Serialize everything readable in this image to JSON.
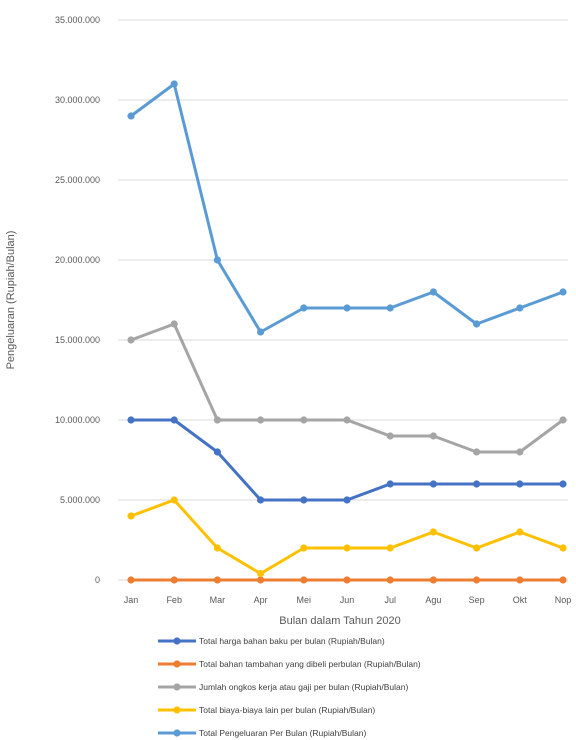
{
  "chart_data": {
    "type": "line",
    "title": "",
    "xlabel": "Bulan dalam Tahun 2020",
    "ylabel": "Pengeluaran (Rupiah/Bulan)",
    "ylim": [
      0,
      35000000
    ],
    "yticks": [
      "0",
      "5.000.000",
      "10.000.000",
      "15.000.000",
      "20.000.000",
      "25.000.000",
      "30.000.000",
      "35.000.000"
    ],
    "categories": [
      "Jan",
      "Feb",
      "Mar",
      "Apr",
      "Mei",
      "Jun",
      "Jul",
      "Agu",
      "Sep",
      "Okt",
      "Nop"
    ],
    "grid": true,
    "legend_position": "bottom",
    "series": [
      {
        "name": "Total harga bahan baku per bulan (Rupiah/Bulan)",
        "color": "#4472C4",
        "values": [
          10000000,
          10000000,
          8000000,
          5000000,
          5000000,
          5000000,
          6000000,
          6000000,
          6000000,
          6000000,
          6000000
        ]
      },
      {
        "name": "Total bahan tambahan yang dibeli perbulan (Rupiah/Bulan)",
        "color": "#ED7D31",
        "values": [
          0,
          0,
          0,
          0,
          0,
          0,
          0,
          0,
          0,
          0,
          0
        ]
      },
      {
        "name": "Jumlah ongkos kerja atau gaji per bulan (Rupiah/Bulan)",
        "color": "#A5A5A5",
        "values": [
          15000000,
          16000000,
          10000000,
          10000000,
          10000000,
          10000000,
          9000000,
          9000000,
          8000000,
          8000000,
          10000000
        ]
      },
      {
        "name": "Total biaya-biaya lain per bulan (Rupiah/Bulan)",
        "color": "#FFC000",
        "values": [
          4000000,
          5000000,
          2000000,
          400000,
          2000000,
          2000000,
          2000000,
          3000000,
          2000000,
          3000000,
          2000000
        ]
      },
      {
        "name": "Total Pengeluaran Per Bulan (Rupiah/Bulan)",
        "color": "#5B9BD5",
        "values": [
          29000000,
          31000000,
          20000000,
          15500000,
          17000000,
          17000000,
          17000000,
          18000000,
          16000000,
          17000000,
          18000000
        ]
      }
    ]
  }
}
